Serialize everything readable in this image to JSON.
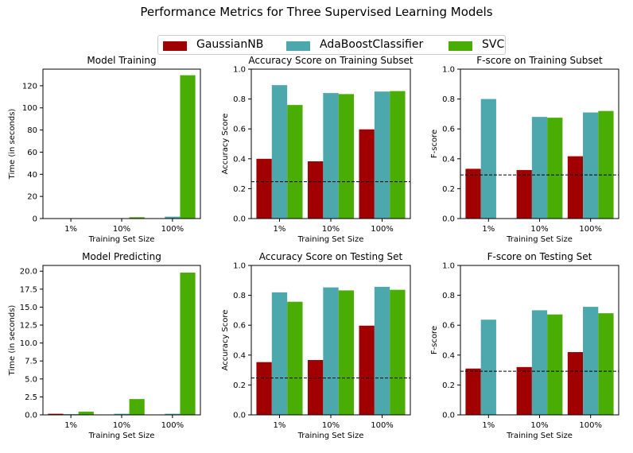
{
  "suptitle": "Performance Metrics for Three Supervised Learning Models",
  "legend": {
    "items": [
      {
        "name": "GaussianNB",
        "color": "#a00000"
      },
      {
        "name": "AdaBoostClassifier",
        "color": "#4ca8ac"
      },
      {
        "name": "SVC",
        "color": "#4aad04"
      }
    ]
  },
  "chart_data": [
    {
      "type": "bar",
      "title": "Model Training",
      "xlabel": "Training Set Size",
      "ylabel": "Time (in seconds)",
      "categories": [
        "1%",
        "10%",
        "100%"
      ],
      "ylim": [
        0,
        135
      ],
      "yticks": [
        0,
        20,
        40,
        60,
        80,
        100,
        120
      ],
      "ytick_labels": [
        "0",
        "20",
        "40",
        "60",
        "80",
        "100",
        "120"
      ],
      "series": [
        {
          "name": "GaussianNB",
          "values": [
            0.0,
            0.0,
            0.1
          ]
        },
        {
          "name": "AdaBoostClassifier",
          "values": [
            0.1,
            0.3,
            1.7
          ]
        },
        {
          "name": "SVC",
          "values": [
            0.0,
            1.2,
            129.5
          ]
        }
      ]
    },
    {
      "type": "bar",
      "title": "Accuracy Score on Training Subset",
      "xlabel": "Training Set Size",
      "ylabel": "Accuracy Score",
      "categories": [
        "1%",
        "10%",
        "100%"
      ],
      "ylim": [
        0,
        1
      ],
      "yticks": [
        0,
        0.2,
        0.4,
        0.6,
        0.8,
        1.0
      ],
      "ytick_labels": [
        "0.0",
        "0.2",
        "0.4",
        "0.6",
        "0.8",
        "1.0"
      ],
      "hline": 0.247,
      "series": [
        {
          "name": "GaussianNB",
          "values": [
            0.4,
            0.383,
            0.597
          ]
        },
        {
          "name": "AdaBoostClassifier",
          "values": [
            0.893,
            0.84,
            0.85
          ]
        },
        {
          "name": "SVC",
          "values": [
            0.76,
            0.833,
            0.853
          ]
        }
      ]
    },
    {
      "type": "bar",
      "title": "F-score on Training Subset",
      "xlabel": "Training Set Size",
      "ylabel": "F-score",
      "categories": [
        "1%",
        "10%",
        "100%"
      ],
      "ylim": [
        0,
        1
      ],
      "yticks": [
        0,
        0.2,
        0.4,
        0.6,
        0.8,
        1.0
      ],
      "ytick_labels": [
        "0.0",
        "0.2",
        "0.4",
        "0.6",
        "0.8",
        "1.0"
      ],
      "hline": 0.292,
      "series": [
        {
          "name": "GaussianNB",
          "values": [
            0.333,
            0.325,
            0.417
          ]
        },
        {
          "name": "AdaBoostClassifier",
          "values": [
            0.8,
            0.68,
            0.71
          ]
        },
        {
          "name": "SVC",
          "values": [
            0.0,
            0.675,
            0.72
          ]
        }
      ]
    },
    {
      "type": "bar",
      "title": "Model Predicting",
      "xlabel": "Training Set Size",
      "ylabel": "Time (in seconds)",
      "categories": [
        "1%",
        "10%",
        "100%"
      ],
      "ylim": [
        0,
        20.8
      ],
      "yticks": [
        0,
        2.5,
        5,
        7.5,
        10,
        12.5,
        15,
        17.5,
        20
      ],
      "ytick_labels": [
        "0.0",
        "2.5",
        "5.0",
        "7.5",
        "10.0",
        "12.5",
        "15.0",
        "17.5",
        "20.0"
      ],
      "series": [
        {
          "name": "GaussianNB",
          "values": [
            0.15,
            0.0,
            0.0
          ]
        },
        {
          "name": "AdaBoostClassifier",
          "values": [
            0.1,
            0.15,
            0.15
          ]
        },
        {
          "name": "SVC",
          "values": [
            0.45,
            2.2,
            19.8
          ]
        }
      ]
    },
    {
      "type": "bar",
      "title": "Accuracy Score on Testing Set",
      "xlabel": "Training Set Size",
      "ylabel": "Accuracy Score",
      "categories": [
        "1%",
        "10%",
        "100%"
      ],
      "ylim": [
        0,
        1
      ],
      "yticks": [
        0,
        0.2,
        0.4,
        0.6,
        0.8,
        1.0
      ],
      "ytick_labels": [
        "0.0",
        "0.2",
        "0.4",
        "0.6",
        "0.8",
        "1.0"
      ],
      "hline": 0.247,
      "series": [
        {
          "name": "GaussianNB",
          "values": [
            0.353,
            0.367,
            0.597
          ]
        },
        {
          "name": "AdaBoostClassifier",
          "values": [
            0.82,
            0.853,
            0.857
          ]
        },
        {
          "name": "SVC",
          "values": [
            0.757,
            0.833,
            0.837
          ]
        }
      ]
    },
    {
      "type": "bar",
      "title": "F-score on Testing Set",
      "xlabel": "Training Set Size",
      "ylabel": "F-score",
      "categories": [
        "1%",
        "10%",
        "100%"
      ],
      "ylim": [
        0,
        1
      ],
      "yticks": [
        0,
        0.2,
        0.4,
        0.6,
        0.8,
        1.0
      ],
      "ytick_labels": [
        "0.0",
        "0.2",
        "0.4",
        "0.6",
        "0.8",
        "1.0"
      ],
      "hline": 0.292,
      "series": [
        {
          "name": "GaussianNB",
          "values": [
            0.31,
            0.32,
            0.42
          ]
        },
        {
          "name": "AdaBoostClassifier",
          "values": [
            0.637,
            0.7,
            0.723
          ]
        },
        {
          "name": "SVC",
          "values": [
            0.0,
            0.672,
            0.68
          ]
        }
      ]
    }
  ]
}
